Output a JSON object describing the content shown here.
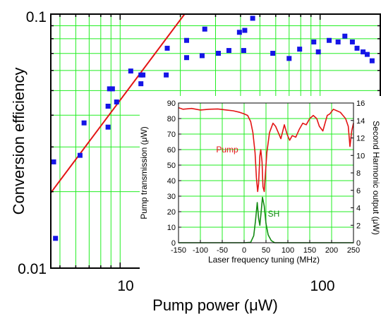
{
  "chart_data": [
    {
      "type": "scatter",
      "xlabel": "Pump power (μW)",
      "ylabel": "Conversion efficiency",
      "xscale": "log",
      "yscale": "log",
      "xlim": [
        4.5,
        200
      ],
      "ylim": [
        0.01,
        0.1
      ],
      "xticks": [
        {
          "value": 10,
          "label": "10"
        },
        {
          "value": 100,
          "label": "100"
        }
      ],
      "yticks": [
        {
          "value": 0.01,
          "label": "0.01"
        },
        {
          "value": 0.1,
          "label": "0.1"
        }
      ],
      "grid": true,
      "colors": {
        "points": "#1515e6",
        "fit": "#e31414",
        "grid": "#22ee22"
      },
      "points": [
        [
          4.65,
          0.0262
        ],
        [
          4.75,
          0.0131
        ],
        [
          6.3,
          0.0278
        ],
        [
          6.6,
          0.0373
        ],
        [
          8.7,
          0.0434
        ],
        [
          8.7,
          0.0359
        ],
        [
          8.85,
          0.0508
        ],
        [
          9.15,
          0.0508
        ],
        [
          9.6,
          0.0451
        ],
        [
          11.3,
          0.0597
        ],
        [
          12.7,
          0.0576
        ],
        [
          12.7,
          0.0532
        ],
        [
          13.0,
          0.0576
        ],
        [
          17.0,
          0.0576
        ],
        [
          17.2,
          0.0734
        ],
        [
          21.5,
          0.0788
        ],
        [
          21.5,
          0.0674
        ],
        [
          25.7,
          0.0686
        ],
        [
          26.5,
          0.0873
        ],
        [
          31.0,
          0.0701
        ],
        [
          35.0,
          0.0719
        ],
        [
          39.5,
          0.0848
        ],
        [
          41.5,
          0.0719
        ],
        [
          42.0,
          0.0863
        ],
        [
          46.0,
          0.0963
        ],
        [
          58.0,
          0.0701
        ],
        [
          70.0,
          0.0669
        ],
        [
          79.0,
          0.0728
        ],
        [
          93.0,
          0.0777
        ],
        [
          98.0,
          0.071
        ],
        [
          111.0,
          0.0788
        ],
        [
          123.0,
          0.0777
        ],
        [
          133.0,
          0.0819
        ],
        [
          145.0,
          0.0777
        ],
        [
          153.0,
          0.0734
        ],
        [
          164.0,
          0.071
        ],
        [
          172.0,
          0.0694
        ],
        [
          182.0,
          0.0655
        ]
      ],
      "fit_line": [
        [
          4.5,
          0.0198
        ],
        [
          21.0,
          0.1
        ]
      ]
    },
    {
      "type": "line",
      "xlabel": "Laser frequency tuning (MHz)",
      "ylabel": "Pump transmission (μW)",
      "y2label": "Second Harmonic output (μW)",
      "xlim": [
        -150,
        250
      ],
      "ylim": [
        0,
        90
      ],
      "y2lim": [
        0,
        16
      ],
      "xticks": [
        "-150",
        "-100",
        "-50",
        "0",
        "50",
        "100",
        "150",
        "200",
        "250"
      ],
      "yticks": [
        "0",
        "10",
        "20",
        "30",
        "40",
        "50",
        "60",
        "70",
        "80",
        "90"
      ],
      "y2ticks": [
        "0",
        "2",
        "4",
        "6",
        "8",
        "10",
        "12",
        "14",
        "16"
      ],
      "grid": true,
      "series": [
        {
          "name": "Pump",
          "axis": "left",
          "color": "#e31414",
          "x": [
            -150,
            -140,
            -120,
            -100,
            -80,
            -60,
            -40,
            -25,
            -10,
            0,
            8,
            15,
            20,
            25,
            28,
            31,
            33,
            36,
            38,
            41,
            43,
            46,
            48,
            52,
            58,
            66,
            72,
            78,
            84,
            92,
            98,
            104,
            110,
            118,
            126,
            134,
            142,
            150,
            158,
            166,
            172,
            180,
            186,
            190,
            196,
            204,
            212,
            220,
            226,
            232,
            238,
            242,
            246,
            250
          ],
          "values": [
            87,
            86,
            86.5,
            85.5,
            86,
            86.2,
            85.5,
            85,
            84,
            83,
            82,
            78,
            71,
            58,
            42,
            33,
            38,
            56,
            60,
            52,
            36,
            33,
            42,
            58,
            71,
            77,
            75,
            71,
            67,
            76,
            70,
            66,
            69,
            68,
            73,
            77,
            76,
            80,
            82,
            80,
            75,
            72,
            78,
            82,
            83,
            86,
            85,
            84,
            82,
            80,
            75,
            62,
            72,
            77
          ]
        },
        {
          "name": "SH",
          "axis": "right",
          "color": "#138a13",
          "x": [
            -150,
            0,
            15,
            22,
            26,
            30,
            33,
            36,
            39,
            42,
            46,
            50,
            55,
            62,
            70,
            250
          ],
          "values": [
            0,
            0,
            0.05,
            0.8,
            2.5,
            4.6,
            2.8,
            2.0,
            3.6,
            5.2,
            4.2,
            2.2,
            0.9,
            0.25,
            0,
            0
          ]
        }
      ]
    }
  ]
}
